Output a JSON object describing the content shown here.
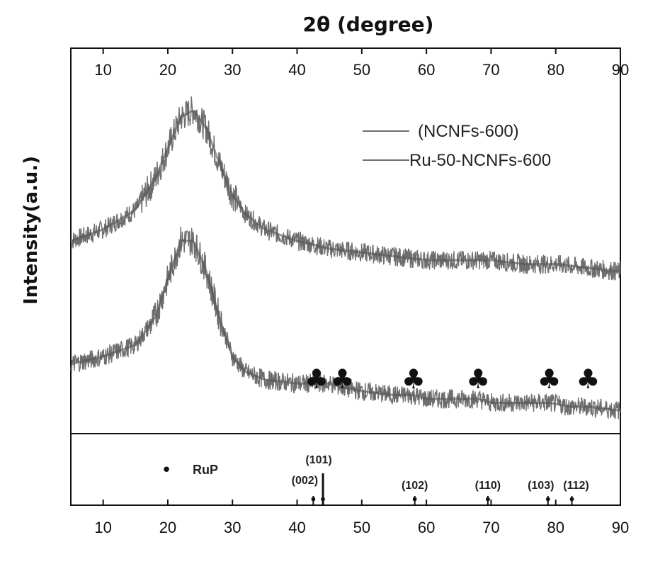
{
  "chart_data": {
    "type": "line",
    "title": "2θ (degree)",
    "ylabel": "Intensity(a.u.)",
    "xlim": [
      5,
      90
    ],
    "xticks": [
      "10",
      "20",
      "30",
      "40",
      "50",
      "60",
      "70",
      "80",
      "90"
    ],
    "legend": {
      "placement": "top-right",
      "entries": [
        "(NCNFs-600)",
        "Ru-50-NCNFs-600"
      ]
    },
    "series": [
      {
        "name": "(NCNFs-600)",
        "color": "#6e6e6e",
        "x": [
          5,
          10,
          15,
          18,
          20,
          22,
          24,
          26,
          28,
          30,
          32,
          35,
          40,
          45,
          50,
          55,
          60,
          65,
          70,
          75,
          80,
          85,
          90
        ],
        "y": [
          0.5,
          0.53,
          0.58,
          0.66,
          0.74,
          0.82,
          0.84,
          0.79,
          0.7,
          0.62,
          0.57,
          0.53,
          0.5,
          0.48,
          0.47,
          0.46,
          0.45,
          0.45,
          0.45,
          0.44,
          0.44,
          0.43,
          0.42
        ]
      },
      {
        "name": "Ru-50-NCNFs-600",
        "color": "#6e6e6e",
        "x": [
          5,
          10,
          15,
          18,
          20,
          22,
          24,
          26,
          28,
          30,
          32,
          35,
          40,
          43,
          45,
          47,
          50,
          55,
          58,
          60,
          65,
          68,
          70,
          75,
          79,
          82,
          85,
          90
        ],
        "y": [
          0.18,
          0.2,
          0.23,
          0.3,
          0.4,
          0.5,
          0.5,
          0.42,
          0.3,
          0.2,
          0.16,
          0.14,
          0.13,
          0.13,
          0.13,
          0.12,
          0.11,
          0.1,
          0.1,
          0.09,
          0.09,
          0.09,
          0.08,
          0.08,
          0.08,
          0.07,
          0.07,
          0.06
        ]
      }
    ],
    "peak_markers": {
      "symbol": "♣",
      "x": [
        43,
        47,
        58,
        68,
        79,
        85
      ]
    },
    "reference": {
      "label": "RuP",
      "symbol": "•",
      "lines": [
        {
          "x": 42.5,
          "label": "(002)"
        },
        {
          "x": 44.0,
          "label": "(101)"
        },
        {
          "x": 58.2,
          "label": "(102)"
        },
        {
          "x": 69.5,
          "label": "(110)"
        },
        {
          "x": 78.8,
          "label": "(103)"
        },
        {
          "x": 82.5,
          "label": "(112)"
        }
      ]
    }
  }
}
